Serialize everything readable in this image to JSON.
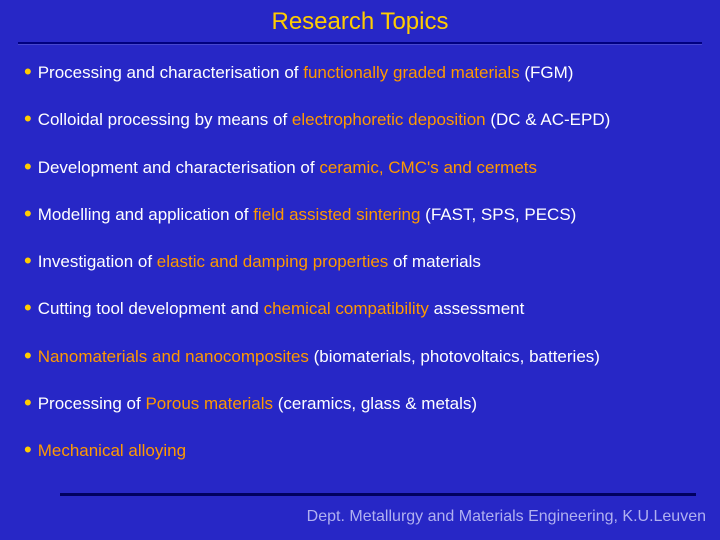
{
  "colors": {
    "background": "#2727c6",
    "title": "#ffcc00",
    "bullet": "#ffcc00",
    "text": "#ffffff",
    "highlight": "#ff9900",
    "footer": "#b0b0f0",
    "underline": "#000080"
  },
  "typography": {
    "font_family": "Comic Sans MS",
    "title_fontsize": 24,
    "body_fontsize": 17,
    "footer_fontsize": 16
  },
  "title": "Research Topics",
  "bullets": [
    {
      "segments": [
        {
          "text": "Processing and characterisation of ",
          "color": "#ffffff"
        },
        {
          "text": "functionally graded materials",
          "color": "#ff9900"
        },
        {
          "text": " (FGM)",
          "color": "#ffffff"
        }
      ]
    },
    {
      "segments": [
        {
          "text": "Colloidal processing by means of ",
          "color": "#ffffff"
        },
        {
          "text": "electrophoretic deposition",
          "color": "#ff9900"
        },
        {
          "text": " (DC & AC-EPD)",
          "color": "#ffffff"
        }
      ]
    },
    {
      "segments": [
        {
          "text": "Development and characterisation of ",
          "color": "#ffffff"
        },
        {
          "text": "ceramic, CMC's and cermets",
          "color": "#ff9900"
        }
      ]
    },
    {
      "segments": [
        {
          "text": "Modelling and application of ",
          "color": "#ffffff"
        },
        {
          "text": "field assisted sintering",
          "color": "#ff9900"
        },
        {
          "text": " (FAST, SPS, PECS)",
          "color": "#ffffff"
        }
      ]
    },
    {
      "segments": [
        {
          "text": "Investigation of ",
          "color": "#ffffff"
        },
        {
          "text": "elastic and damping properties",
          "color": "#ff9900"
        },
        {
          "text": " of materials",
          "color": "#ffffff"
        }
      ]
    },
    {
      "segments": [
        {
          "text": "Cutting tool development and ",
          "color": "#ffffff"
        },
        {
          "text": "chemical compatibility",
          "color": "#ff9900"
        },
        {
          "text": " assessment",
          "color": "#ffffff"
        }
      ]
    },
    {
      "segments": [
        {
          "text": "Nanomaterials and nanocomposites",
          "color": "#ff9900"
        },
        {
          "text": " (biomaterials, photovoltaics, batteries)",
          "color": "#ffffff"
        }
      ]
    },
    {
      "segments": [
        {
          "text": "Processing of ",
          "color": "#ffffff"
        },
        {
          "text": "Porous materials",
          "color": "#ff9900"
        },
        {
          "text": " (ceramics, glass & metals)",
          "color": "#ffffff"
        }
      ]
    },
    {
      "segments": [
        {
          "text": "Mechanical alloying",
          "color": "#ff9900"
        }
      ]
    }
  ],
  "footer": "Dept. Metallurgy and Materials Engineering, K.U.Leuven"
}
